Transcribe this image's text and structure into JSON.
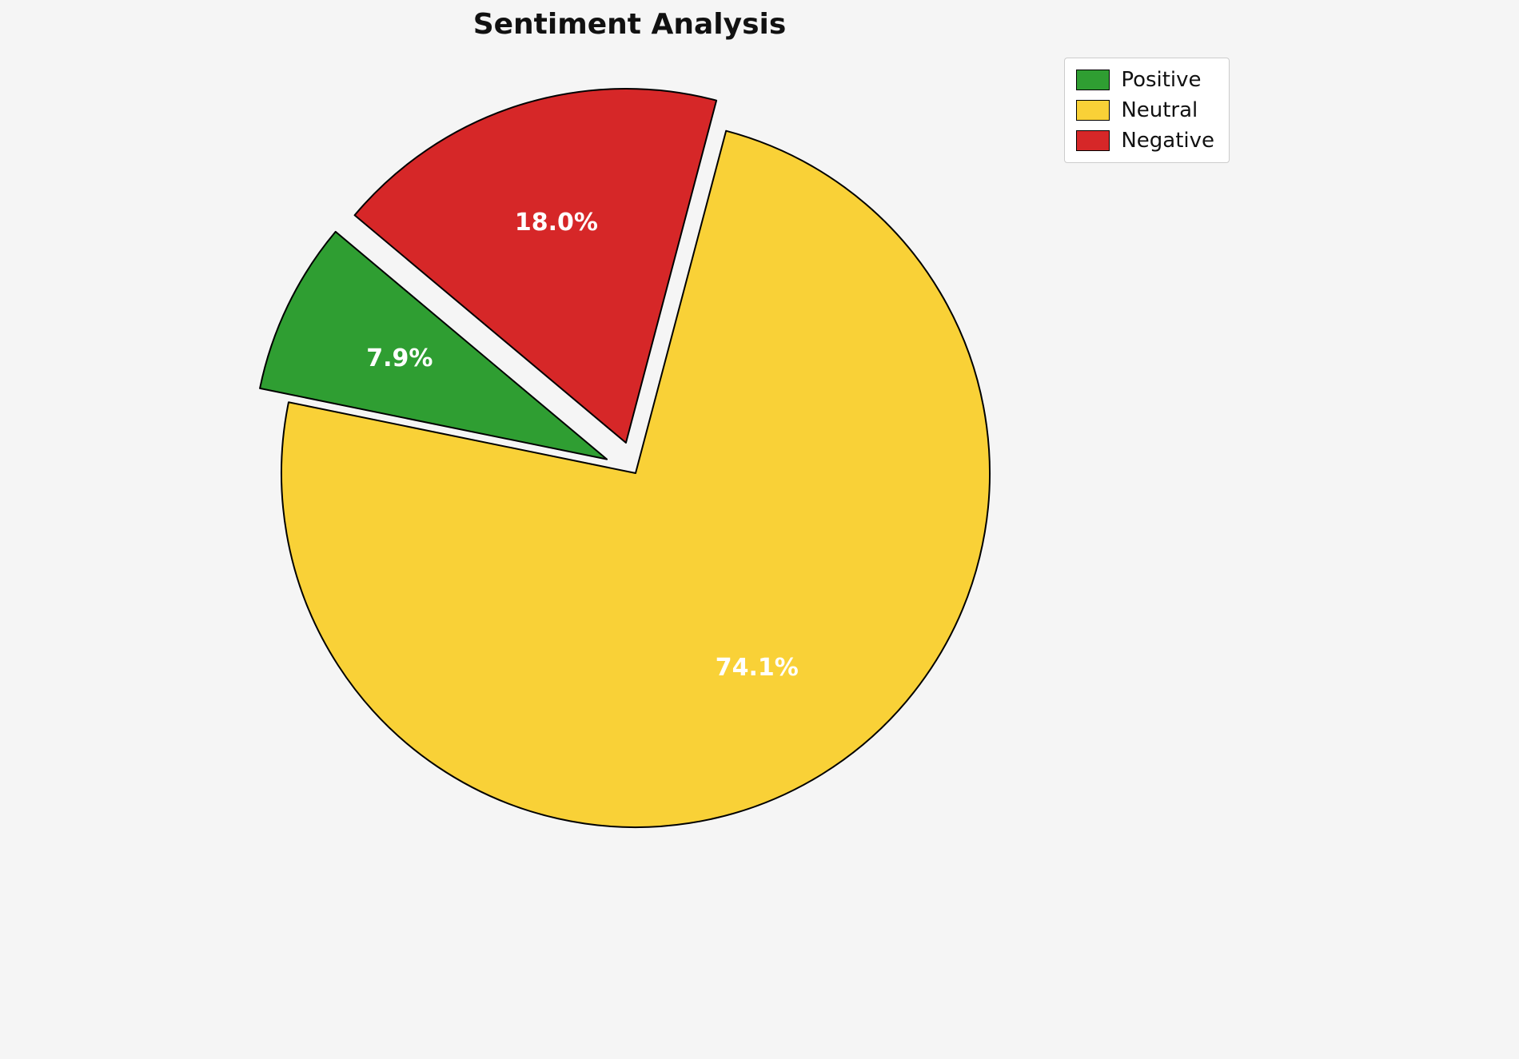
{
  "background_color": "#f5f5f5",
  "chart_data": {
    "type": "pie",
    "title": "Sentiment Analysis",
    "labels": [
      "Positive",
      "Neutral",
      "Negative"
    ],
    "values": [
      7.9,
      74.1,
      18.0
    ],
    "pct_labels": [
      "7.9%",
      "74.1%",
      "18.0%"
    ],
    "colors": [
      "#2f9e32",
      "#f9d137",
      "#d62728"
    ],
    "edge_color": "#000000",
    "explode": [
      0.09,
      0,
      0.09
    ],
    "start_angle": 140,
    "counterclockwise": true,
    "label_distance": 0.65,
    "legend_position": "upper right",
    "legend_entries": [
      "Positive",
      "Neutral",
      "Negative"
    ]
  }
}
